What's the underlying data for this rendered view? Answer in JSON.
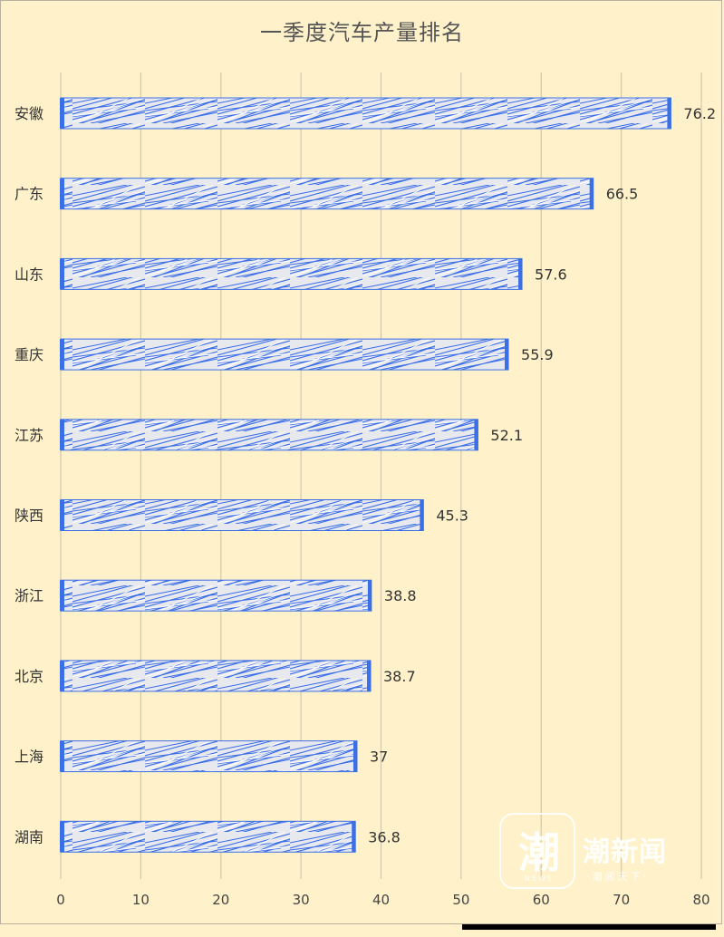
{
  "chart_data": {
    "type": "bar",
    "orientation": "horizontal",
    "title": "一季度汽车产量排名",
    "categories": [
      "安徽",
      "广东",
      "山东",
      "重庆",
      "江苏",
      "陕西",
      "浙江",
      "北京",
      "上海",
      "湖南"
    ],
    "values": [
      76.2,
      66.5,
      57.6,
      55.9,
      52.1,
      45.3,
      38.8,
      38.7,
      37,
      36.8
    ],
    "value_labels": [
      "76.2",
      "66.5",
      "57.6",
      "55.9",
      "52.1",
      "45.3",
      "38.8",
      "38.7",
      "37",
      "36.8"
    ],
    "xlim": [
      0,
      80
    ],
    "xticks": [
      "0",
      "10",
      "20",
      "30",
      "40",
      "50",
      "60",
      "70",
      "80"
    ],
    "grid": true,
    "bar_color": "#3b6fe6",
    "bar_fill_color": "#e8e8ef",
    "background_color": "#fff1c9"
  },
  "watermark": {
    "logo_glyph": "潮",
    "logo_sub": "NEWS",
    "name": "潮新闻",
    "slogan": "·潮闻天下·"
  }
}
